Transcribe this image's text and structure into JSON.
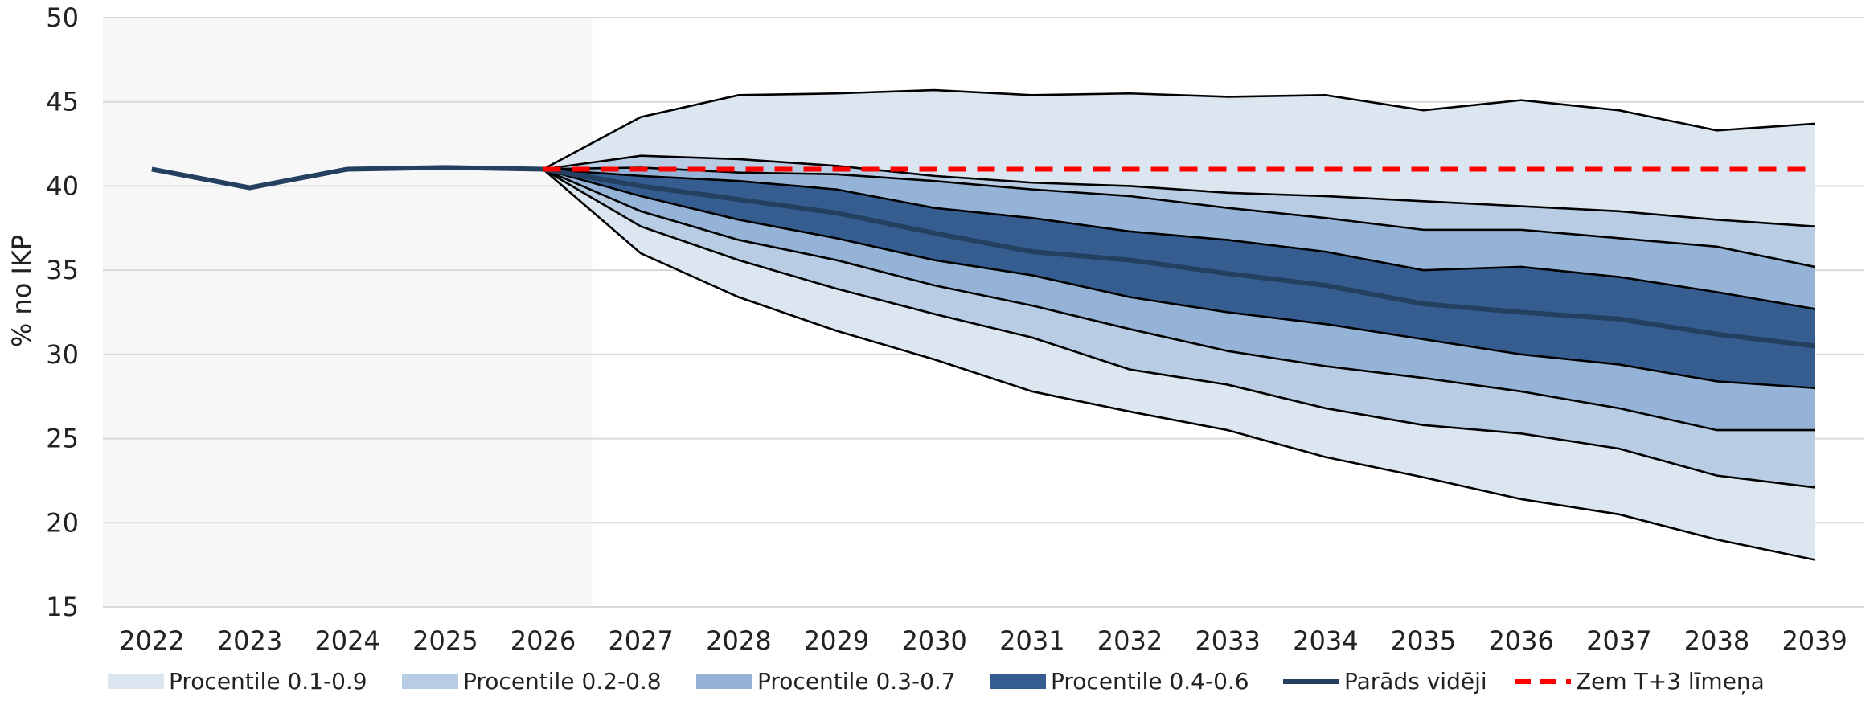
{
  "chart_data": {
    "type": "area",
    "title": "",
    "xlabel": "",
    "ylabel": "% no IKP",
    "ylim": [
      15,
      50
    ],
    "yticks": [
      15,
      20,
      25,
      30,
      35,
      40,
      45,
      50
    ],
    "grid": true,
    "history_shading": [
      "2022",
      "2026"
    ],
    "x": [
      "2022",
      "2023",
      "2024",
      "2025",
      "2026",
      "2027",
      "2028",
      "2029",
      "2030",
      "2031",
      "2032",
      "2033",
      "2034",
      "2035",
      "2036",
      "2037",
      "2038",
      "2039"
    ],
    "fan_x": [
      "2026",
      "2027",
      "2028",
      "2029",
      "2030",
      "2031",
      "2032",
      "2033",
      "2034",
      "2035",
      "2036",
      "2037",
      "2038",
      "2039"
    ],
    "percentiles": {
      "p10": [
        41.0,
        36.0,
        33.4,
        31.4,
        29.7,
        27.8,
        26.6,
        25.5,
        23.9,
        22.7,
        21.4,
        20.5,
        19.0,
        17.8
      ],
      "p20": [
        41.0,
        37.6,
        35.6,
        33.9,
        32.4,
        31.0,
        29.1,
        28.2,
        26.8,
        25.8,
        25.3,
        24.4,
        22.8,
        22.1
      ],
      "p30": [
        41.0,
        38.5,
        36.8,
        35.6,
        34.1,
        32.9,
        31.5,
        30.2,
        29.3,
        28.6,
        27.8,
        26.8,
        25.5,
        25.5
      ],
      "p40": [
        41.0,
        39.4,
        38.0,
        36.9,
        35.6,
        34.7,
        33.4,
        32.5,
        31.8,
        30.9,
        30.0,
        29.4,
        28.4,
        28.0
      ],
      "p60": [
        41.0,
        40.6,
        40.3,
        39.8,
        38.7,
        38.1,
        37.3,
        36.8,
        36.1,
        35.0,
        35.2,
        34.6,
        33.7,
        32.7
      ],
      "p70": [
        41.0,
        41.1,
        40.8,
        40.7,
        40.3,
        39.8,
        39.4,
        38.7,
        38.1,
        37.4,
        37.4,
        36.9,
        36.4,
        35.2
      ],
      "p80": [
        41.0,
        41.8,
        41.6,
        41.2,
        40.6,
        40.2,
        40.0,
        39.6,
        39.4,
        39.1,
        38.8,
        38.5,
        38.0,
        37.6
      ],
      "p90": [
        41.0,
        44.1,
        45.4,
        45.5,
        45.7,
        45.4,
        45.5,
        45.3,
        45.4,
        44.5,
        45.1,
        44.5,
        43.3,
        43.7
      ]
    },
    "series": [
      {
        "name": "Parāds vidēji",
        "x": [
          "2022",
          "2023",
          "2024",
          "2025",
          "2026",
          "2027",
          "2028",
          "2029",
          "2030",
          "2031",
          "2032",
          "2033",
          "2034",
          "2035",
          "2036",
          "2037",
          "2038",
          "2039"
        ],
        "values": [
          41.0,
          39.9,
          41.0,
          41.1,
          41.0,
          40.0,
          39.2,
          38.4,
          37.2,
          36.1,
          35.6,
          34.8,
          34.1,
          33.0,
          32.5,
          32.1,
          31.2,
          30.5
        ]
      },
      {
        "name": "Zem T+3 līmeņa",
        "x": [
          "2026",
          "2039"
        ],
        "values": [
          41.0,
          41.0
        ]
      }
    ],
    "legend": {
      "placement": "bottom",
      "items": [
        {
          "label": "Procentile 0.1-0.9",
          "color": "#dce6f1",
          "kind": "band"
        },
        {
          "label": "Procentile 0.2-0.8",
          "color": "#b8cce4",
          "kind": "band"
        },
        {
          "label": "Procentile 0.3-0.7",
          "color": "#95b3d7",
          "kind": "band"
        },
        {
          "label": "Procentile 0.4-0.6",
          "color": "#355d90",
          "kind": "band"
        },
        {
          "label": "Parāds vidēji",
          "color": "#243f60",
          "kind": "line"
        },
        {
          "label": "Zem T+3 līmeņa",
          "color": "#ff0000",
          "kind": "dash"
        }
      ]
    },
    "colors": {
      "band_outer": "#dce6f1",
      "band_2": "#b8cce4",
      "band_3": "#95b3d7",
      "band_inner": "#355d90",
      "median": "#243f60",
      "threshold": "#ff0000",
      "history_bg": "#f7f7f7",
      "gridline": "#d9d9d9",
      "band_edge": "#000000"
    }
  }
}
